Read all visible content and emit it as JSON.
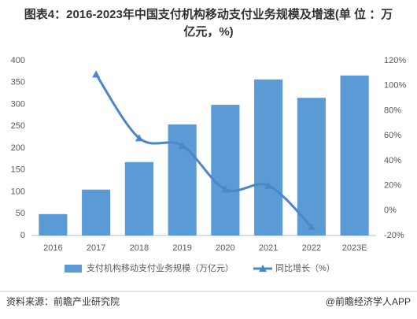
{
  "chart_data": {
    "type": "bar",
    "title": "图表4：2016-2023年中国支付机构移动支付业务规模及增速(单 位 ：万亿元，%)",
    "categories": [
      "2016",
      "2017",
      "2018",
      "2019",
      "2020",
      "2021",
      "2022",
      "2023E"
    ],
    "series": [
      {
        "name": "支付机构移动支付业务规模（万亿元）",
        "type": "bar",
        "color": "#5b9bd5",
        "values": [
          49,
          105,
          168,
          254,
          299,
          357,
          315,
          366
        ]
      },
      {
        "name": "同比增长（%）",
        "type": "line",
        "axis": "y2",
        "color": "#4a86c8",
        "values": [
          null,
          109,
          58,
          52,
          17,
          20,
          -13,
          null
        ]
      }
    ],
    "ylim": [
      0,
      400
    ],
    "yticks": [
      0,
      50,
      100,
      150,
      200,
      250,
      300,
      350,
      400
    ],
    "y2lim": [
      -20,
      120
    ],
    "y2ticks": [
      {
        "value": -20,
        "label": "-20%"
      },
      {
        "value": 0,
        "label": "0%"
      },
      {
        "value": 20,
        "label": "20%"
      },
      {
        "value": 40,
        "label": "40%"
      },
      {
        "value": 60,
        "label": "60%"
      },
      {
        "value": 80,
        "label": "80%"
      },
      {
        "value": 100,
        "label": "100%"
      },
      {
        "value": 120,
        "label": "120%"
      }
    ],
    "grid": false,
    "source": "资料来源：前瞻产业研究院",
    "credit": "@前瞻经济学人APP"
  }
}
